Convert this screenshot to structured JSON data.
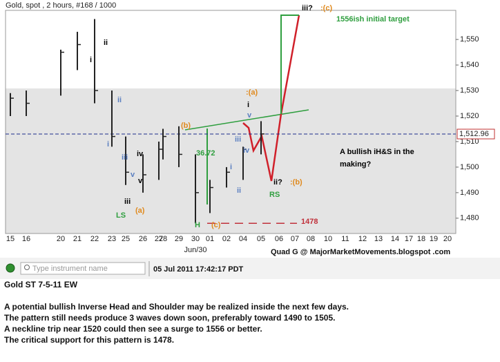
{
  "chart_data": {
    "type": "ohlc",
    "title": "Gold, spot , 2 hours, #168 / 1000",
    "categories": [
      "15",
      "16",
      "20",
      "21",
      "22",
      "23",
      "25",
      "26",
      "27",
      "28",
      "29",
      "30",
      "01",
      "02",
      "04",
      "05",
      "06",
      "07",
      "08",
      "10",
      "11",
      "12",
      "13",
      "14",
      "17",
      "18",
      "19",
      "20"
    ],
    "x_sublabel": "Jun/30",
    "high": [
      1529,
      1530,
      1546,
      1553,
      1558,
      1530,
      1512,
      1505,
      1510,
      1515,
      1516,
      1505,
      1495,
      1500,
      1508,
      1518,
      null,
      null,
      null,
      null,
      null,
      null,
      null,
      null,
      null,
      null,
      null,
      null
    ],
    "low": [
      1520,
      1520,
      1528,
      1538,
      1525,
      1508,
      1493,
      1490,
      1495,
      1503,
      1500,
      1478,
      1482,
      1492,
      1495,
      1505,
      null,
      null,
      null,
      null,
      null,
      null,
      null,
      null,
      null,
      null,
      null,
      null
    ],
    "close": [
      1527,
      1525,
      1545,
      1548,
      1530,
      1512,
      1498,
      1497,
      1507,
      1512,
      1505,
      1490,
      1492,
      1498,
      1507,
      1513,
      null,
      null,
      null,
      null,
      null,
      null,
      null,
      null,
      null,
      null,
      null,
      null
    ],
    "color": "#222222",
    "ylim": [
      1474,
      1561.4
    ],
    "yticks": [
      {
        "value": 1480,
        "label": "1,480"
      },
      {
        "value": 1490,
        "label": "1,490"
      },
      {
        "value": 1500,
        "label": "1,500"
      },
      {
        "value": 1510,
        "label": "1,510"
      },
      {
        "value": 1520,
        "label": "1,520"
      },
      {
        "value": 1530,
        "label": "1,530"
      },
      {
        "value": 1540,
        "label": "1,540"
      },
      {
        "value": 1550,
        "label": "1,550"
      }
    ],
    "last_price": {
      "value": 1512.96,
      "label": "1,512.96"
    },
    "support": 1478,
    "annotations": [
      {
        "text": "iii?",
        "color": "#000000"
      },
      {
        "text": ":(c)",
        "color": "#e08a1e"
      },
      {
        "text": "1556ish initial target",
        "color": "#2e9e3e"
      },
      {
        "text": "ii",
        "color": "#000000"
      },
      {
        "text": "i",
        "color": "#000000"
      },
      {
        "text": "ii",
        "color": "#5a7fc0"
      },
      {
        "text": "i",
        "color": "#5a7fc0"
      },
      {
        "text": ":(a)",
        "color": "#e08a1e"
      },
      {
        "text": "i",
        "color": "#000000"
      },
      {
        "text": "v",
        "color": "#5a7fc0"
      },
      {
        "text": "(b)",
        "color": "#e08a1e"
      },
      {
        "text": "iii",
        "color": "#5a7fc0"
      },
      {
        "text": "iv",
        "color": "#5a7fc0"
      },
      {
        "text": "i",
        "color": "#5a7fc0"
      },
      {
        "text": "ii",
        "color": "#5a7fc0"
      },
      {
        "text": "iv",
        "color": "#000000"
      },
      {
        "text": "iii",
        "color": "#5a7fc0"
      },
      {
        "text": "v",
        "color": "#5a7fc0"
      },
      {
        "text": "v",
        "color": "#000000"
      },
      {
        "text": "iii",
        "color": "#000000"
      },
      {
        "text": "(a)",
        "color": "#e08a1e"
      },
      {
        "text": "LS",
        "color": "#2e9e3e"
      },
      {
        "text": "36.72",
        "color": "#2e9e3e"
      },
      {
        "text": "ii?",
        "color": "#000000"
      },
      {
        "text": ":(b)",
        "color": "#e08a1e"
      },
      {
        "text": "RS",
        "color": "#2e9e3e"
      },
      {
        "text": "H",
        "color": "#2e9e3e"
      },
      {
        "text": "(c)",
        "color": "#e08a1e"
      },
      {
        "text": "A bullish iH&S in the",
        "color": "#000000"
      },
      {
        "text": "making?",
        "color": "#000000"
      }
    ],
    "credit": "Quad G @ MajorMarketMovements.blogspot .com"
  },
  "toolbar": {
    "placeholder": "Type instrument name",
    "timestamp": "05 Jul 2011 17:42:17 PDT"
  },
  "post": {
    "title": "Gold ST 7-5-11 EW",
    "lines": [
      "A potential bullish Inverse Head and Shoulder may be realized inside the next few days.",
      "The pattern still needs produce 3 waves down soon, preferably toward 1490 to 1505.",
      "A neckline trip near 1520 could then see a surge to 1556 or better.",
      "The critical support for this pattern is 1478."
    ]
  }
}
